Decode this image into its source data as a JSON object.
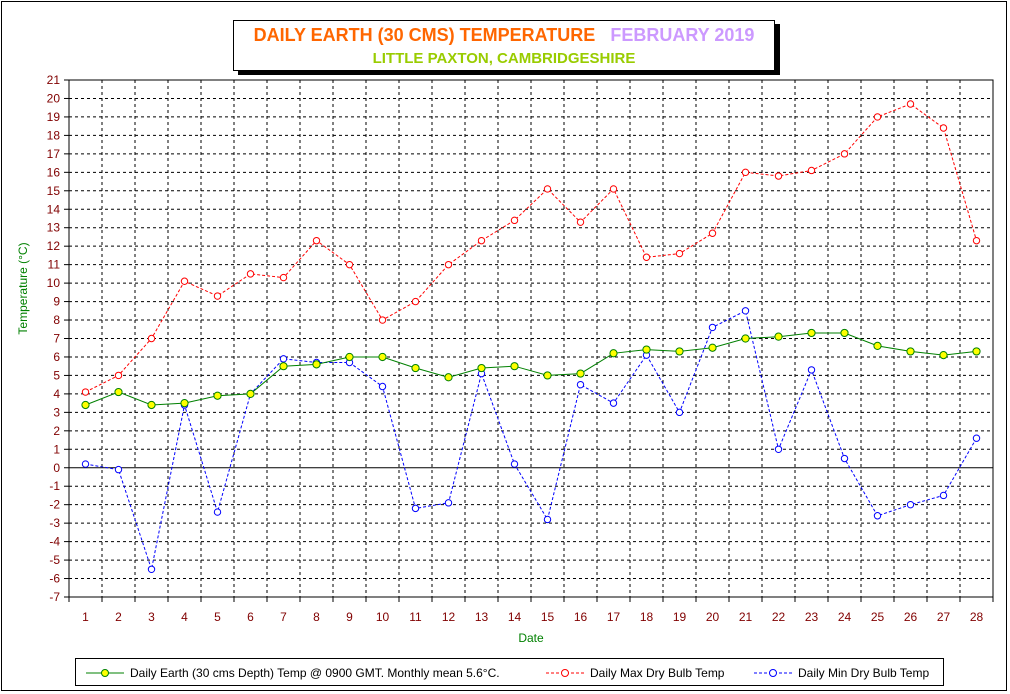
{
  "title": {
    "main": "DAILY EARTH (30 CMS) TEMPERATURE",
    "period": "FEBRUARY 2019",
    "location": "LITTLE PAXTON, CAMBRIDGESHIRE"
  },
  "colors": {
    "title_main": "#ff6600",
    "title_period": "#cc99ff",
    "title_location": "#99cc00",
    "axis_label": "#008000",
    "tick_label": "#800000",
    "earth": "#008000",
    "earth_marker": "#ffff00",
    "max": "#ff0000",
    "min": "#0000ff"
  },
  "chart_data": {
    "type": "line",
    "xlabel": "Date",
    "ylabel": "Temperature (°C)",
    "ylim": [
      -7,
      21
    ],
    "grid": true,
    "legend_position": "bottom",
    "x": [
      1,
      2,
      3,
      4,
      5,
      6,
      7,
      8,
      9,
      10,
      11,
      12,
      13,
      14,
      15,
      16,
      17,
      18,
      19,
      20,
      21,
      22,
      23,
      24,
      25,
      26,
      27,
      28
    ],
    "series": [
      {
        "name": "Daily Earth (30 cms Depth) Temp @ 0900 GMT. Monthly mean 5.6°C.",
        "color": "#008000",
        "marker": "filled-circle-yellow",
        "values": [
          3.4,
          4.1,
          3.4,
          3.5,
          3.9,
          4.0,
          5.5,
          5.6,
          6.0,
          6.0,
          5.4,
          4.9,
          5.4,
          5.5,
          5.0,
          5.1,
          6.2,
          6.4,
          6.3,
          6.5,
          7.0,
          7.1,
          7.3,
          7.3,
          6.6,
          6.3,
          6.1,
          6.3
        ]
      },
      {
        "name": "Daily Max Dry Bulb Temp",
        "color": "#ff0000",
        "marker": "open-circle",
        "values": [
          4.1,
          5.0,
          7.0,
          10.1,
          9.3,
          10.5,
          10.3,
          12.3,
          11.0,
          8.0,
          9.0,
          11.0,
          12.3,
          13.4,
          15.1,
          13.3,
          15.1,
          11.4,
          11.6,
          12.7,
          16.0,
          15.8,
          16.1,
          17.0,
          19.0,
          19.7,
          18.4,
          12.3
        ]
      },
      {
        "name": "Daily Min Dry Bulb Temp",
        "color": "#0000ff",
        "marker": "open-circle",
        "values": [
          0.2,
          -0.1,
          -5.5,
          3.4,
          -2.4,
          4.0,
          5.9,
          5.7,
          5.7,
          4.4,
          -2.2,
          -1.9,
          5.1,
          0.2,
          -2.8,
          4.5,
          3.5,
          6.1,
          3.0,
          7.6,
          8.5,
          1.0,
          5.3,
          0.5,
          -2.6,
          -2.0,
          -1.5,
          1.6
        ]
      }
    ]
  }
}
